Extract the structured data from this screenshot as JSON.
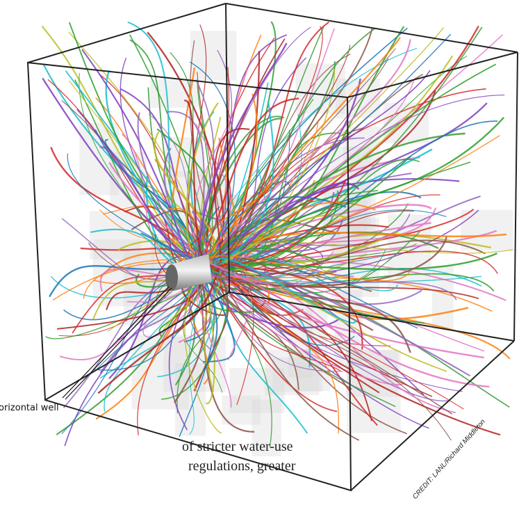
{
  "figure": {
    "well_label": "orizontal well",
    "credit": "CREDIT: LANL/Richard Middleton"
  },
  "body_text": {
    "lines": [
      "of stricter water-use",
      "regulations, greater"
    ]
  }
}
